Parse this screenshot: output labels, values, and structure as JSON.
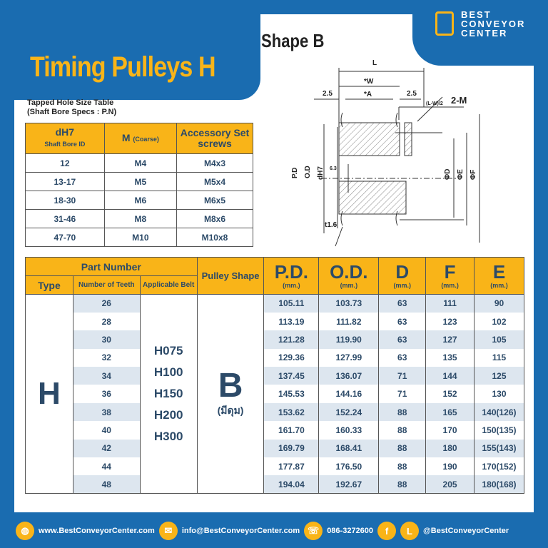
{
  "title": "Timing Pulleys H",
  "shape_title": "Shape B",
  "logo": {
    "line1": "BEST",
    "line2": "CONVEYOR",
    "line3": "CENTER"
  },
  "diagram": {
    "L": "L",
    "W": "*W",
    "A": "*A",
    "left_margin": "2.5",
    "right_margin": "2.5",
    "lw2": "(L-W)/2",
    "m": "2-M",
    "pd": "P.D",
    "od": "O.D",
    "dh7": "dH7",
    "rough": "6.3",
    "d": "ΦD",
    "e": "ΦE",
    "f": "ΦF",
    "t": "t1.6"
  },
  "small_table": {
    "title1": "Tapped Hole Size Table",
    "title2": "(Shaft Bore Specs : P.N)",
    "headers": {
      "c1": "dH7",
      "c1sub": "Shaft Bore ID",
      "c2": "M",
      "c2sub": "(Coarse)",
      "c3": "Accessory Set screws"
    },
    "rows": [
      [
        "12",
        "M4",
        "M4x3"
      ],
      [
        "13-17",
        "M5",
        "M5x4"
      ],
      [
        "18-30",
        "M6",
        "M6x5"
      ],
      [
        "31-46",
        "M8",
        "M8x6"
      ],
      [
        "47-70",
        "M10",
        "M10x8"
      ]
    ]
  },
  "main_table": {
    "part_number": "Part Number",
    "type": "Type",
    "teeth": "Number of Teeth",
    "belt": "Applicable Belt",
    "shape": "Pulley Shape",
    "pd": "P.D.",
    "od": "O.D.",
    "d": "D",
    "f": "F",
    "e": "E",
    "mm": "(mm.)",
    "type_value": "H",
    "shape_value": "B",
    "shape_note": "(มีดุม)",
    "belts": [
      "H075",
      "H100",
      "H150",
      "H200",
      "H300"
    ],
    "rows": [
      [
        "26",
        "105.11",
        "103.73",
        "63",
        "111",
        "90"
      ],
      [
        "28",
        "113.19",
        "111.82",
        "63",
        "123",
        "102"
      ],
      [
        "30",
        "121.28",
        "119.90",
        "63",
        "127",
        "105"
      ],
      [
        "32",
        "129.36",
        "127.99",
        "63",
        "135",
        "115"
      ],
      [
        "34",
        "137.45",
        "136.07",
        "71",
        "144",
        "125"
      ],
      [
        "36",
        "145.53",
        "144.16",
        "71",
        "152",
        "130"
      ],
      [
        "38",
        "153.62",
        "152.24",
        "88",
        "165",
        "140(126)"
      ],
      [
        "40",
        "161.70",
        "160.33",
        "88",
        "170",
        "150(135)"
      ],
      [
        "42",
        "169.79",
        "168.41",
        "88",
        "180",
        "155(143)"
      ],
      [
        "44",
        "177.87",
        "176.50",
        "88",
        "190",
        "170(152)"
      ],
      [
        "48",
        "194.04",
        "192.67",
        "88",
        "205",
        "180(168)"
      ]
    ]
  },
  "footer": {
    "web": "www.BestConveyorCenter.com",
    "email": "info@BestConveyorCenter.com",
    "phone": "086-3272600",
    "line": "@BestConveyorCenter"
  },
  "colors": {
    "blue": "#1a6cb0",
    "yellow": "#f9b418",
    "stripe": "#dde6ef"
  }
}
